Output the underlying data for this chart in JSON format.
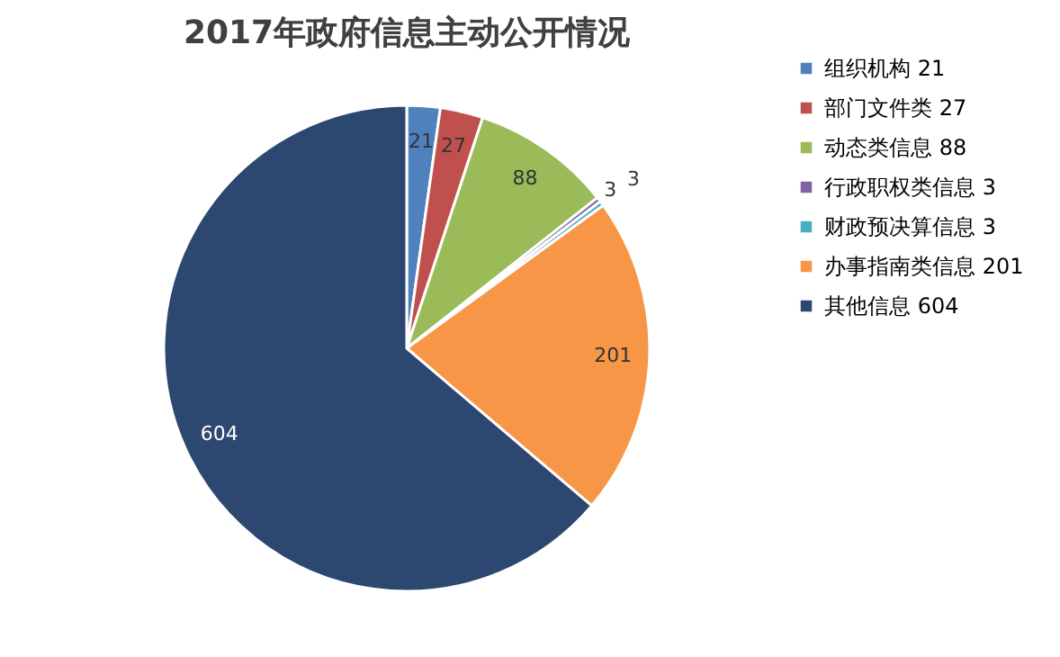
{
  "chart_data": {
    "type": "pie",
    "title": "2017年政府信息主动公开情况",
    "categories": [
      "组织机构 21",
      "部门文件类 27",
      "动态类信息 88",
      "行政职权类信息 3",
      "财政预决算信息 3",
      "办事指南类信息 201",
      "其他信息 604"
    ],
    "values": [
      21,
      27,
      88,
      3,
      3,
      201,
      604
    ],
    "colors": [
      "#4f81bd",
      "#c0504d",
      "#9bbb59",
      "#8064a2",
      "#4bacc6",
      "#f79646",
      "#2c4770"
    ],
    "data_labels": true,
    "legend": "right"
  }
}
